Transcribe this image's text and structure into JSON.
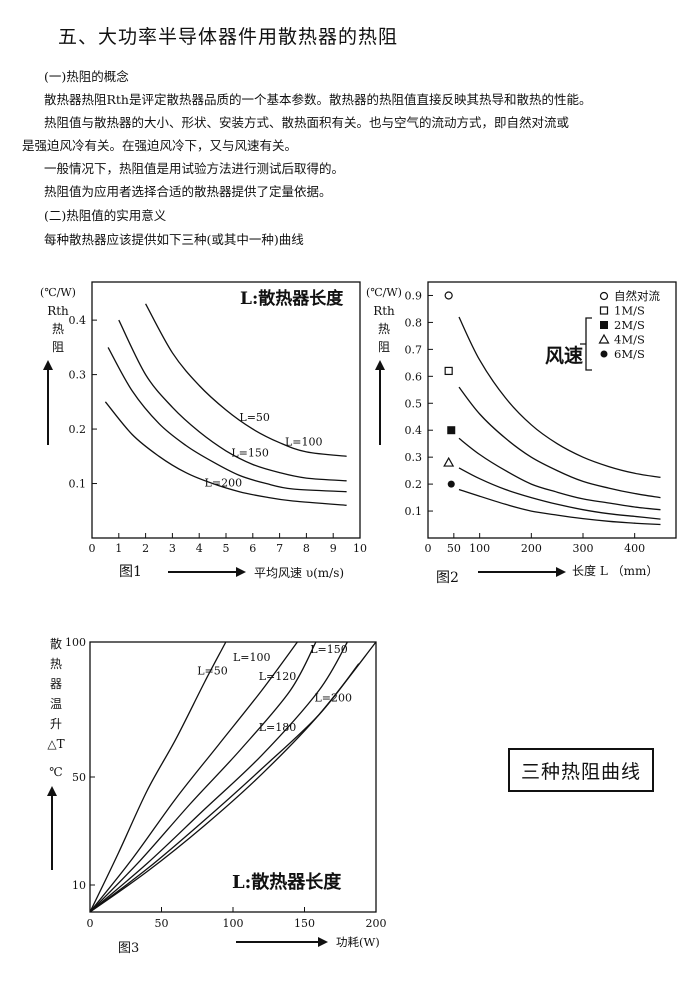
{
  "doc": {
    "title": "五、大功率半导体器件用散热器的热阻",
    "section1": "(一)热阻的概念",
    "p1": "散热器热阻Rth是评定散热器品质的一个基本参数。散热器的热阻值直接反映其热导和散热的性能。",
    "p2a": "热阻值与散热器的大小、形状、安装方式、散热面积有关。也与空气的流动方式，即自然对流或",
    "p2b": "是强迫风冷有关。在强迫风冷下，又与风速有关。",
    "p3": "一般情况下，热阻值是用试验方法进行测试后取得的。",
    "p4": "热阻值为应用者选择合适的散热器提供了定量依据。",
    "section2": "(二)热阻值的实用意义",
    "p5": "每种散热器应该提供如下三种(或其中一种)曲线",
    "box_label": "三种热阻曲线"
  },
  "chart_data": [
    {
      "type": "line",
      "caption": "图1",
      "banner": "L:散热器长度",
      "xlabel": "平均风速 υ(m/s)",
      "ylabel_unit": "(℃/W)",
      "ylabel": [
        "Rth",
        "热",
        "阻"
      ],
      "xlim": [
        0,
        10
      ],
      "ylim": [
        0,
        0.47
      ],
      "xticks": [
        0,
        1,
        2,
        3,
        4,
        5,
        6,
        7,
        8,
        9,
        10
      ],
      "yticks": [
        0.1,
        0.2,
        0.3,
        0.4
      ],
      "series": [
        {
          "name": "L=50",
          "label_at": [
            5.5,
            0.215
          ],
          "x": [
            2.0,
            3,
            4,
            5,
            6,
            7,
            8,
            9.5
          ],
          "y": [
            0.43,
            0.34,
            0.28,
            0.235,
            0.2,
            0.175,
            0.158,
            0.15
          ]
        },
        {
          "name": "L=100",
          "label_at": [
            7.2,
            0.17
          ],
          "x": [
            1.0,
            2,
            3,
            4,
            5,
            6,
            7,
            8,
            9.5
          ],
          "y": [
            0.4,
            0.3,
            0.24,
            0.195,
            0.16,
            0.135,
            0.12,
            0.11,
            0.105
          ]
        },
        {
          "name": "L=150",
          "label_at": [
            5.2,
            0.15
          ],
          "x": [
            0.6,
            1.5,
            2.5,
            3.5,
            4.5,
            5.5,
            6.5,
            7.5,
            9.5
          ],
          "y": [
            0.35,
            0.27,
            0.21,
            0.17,
            0.14,
            0.115,
            0.1,
            0.09,
            0.085
          ]
        },
        {
          "name": "L=200",
          "label_at": [
            4.2,
            0.095
          ],
          "x": [
            0.5,
            1.5,
            2.5,
            3.5,
            4.5,
            5.5,
            6.5,
            7.5,
            9.5
          ],
          "y": [
            0.25,
            0.19,
            0.15,
            0.12,
            0.1,
            0.085,
            0.075,
            0.068,
            0.06
          ]
        }
      ]
    },
    {
      "type": "line",
      "caption": "图2",
      "banner": "风速",
      "xlabel": "长度 L （mm）",
      "ylabel_unit": "(℃/W)",
      "ylabel": [
        "Rth",
        "热",
        "阻"
      ],
      "xlim": [
        0,
        480
      ],
      "ylim": [
        0,
        0.95
      ],
      "xticks": [
        0,
        50,
        100,
        200,
        300,
        400
      ],
      "yticks": [
        0.1,
        0.2,
        0.3,
        0.4,
        0.5,
        0.6,
        0.7,
        0.8,
        0.9
      ],
      "legend": [
        "自然对流",
        "1M/S",
        "2M/S",
        "4M/S",
        "6M/S"
      ],
      "series": [
        {
          "name": "自然对流",
          "marker": "circle-open",
          "x": [
            40,
            60,
            100,
            150,
            200,
            250,
            300,
            350,
            400,
            450
          ],
          "y": [
            0.9,
            0.82,
            0.66,
            0.52,
            0.42,
            0.35,
            0.3,
            0.265,
            0.24,
            0.225
          ]
        },
        {
          "name": "1M/S",
          "marker": "square-open",
          "x": [
            40,
            60,
            100,
            150,
            200,
            250,
            300,
            350,
            400,
            450
          ],
          "y": [
            0.62,
            0.56,
            0.46,
            0.37,
            0.3,
            0.25,
            0.21,
            0.185,
            0.165,
            0.15
          ]
        },
        {
          "name": "2M/S",
          "marker": "square-filled",
          "x": [
            45,
            60,
            100,
            150,
            200,
            250,
            300,
            350,
            400,
            450
          ],
          "y": [
            0.4,
            0.37,
            0.31,
            0.25,
            0.2,
            0.17,
            0.145,
            0.13,
            0.115,
            0.105
          ]
        },
        {
          "name": "4M/S",
          "marker": "triangle-open",
          "x": [
            40,
            60,
            100,
            150,
            200,
            250,
            300,
            350,
            400,
            450
          ],
          "y": [
            0.28,
            0.26,
            0.22,
            0.18,
            0.15,
            0.125,
            0.105,
            0.09,
            0.08,
            0.07
          ]
        },
        {
          "name": "6M/S",
          "marker": "circle-filled",
          "x": [
            45,
            60,
            100,
            150,
            200,
            250,
            300,
            350,
            400,
            450
          ],
          "y": [
            0.2,
            0.18,
            0.155,
            0.125,
            0.1,
            0.085,
            0.072,
            0.062,
            0.055,
            0.05
          ]
        }
      ]
    },
    {
      "type": "line",
      "caption": "图3",
      "banner": "L:散热器长度",
      "xlabel": "功耗(W)",
      "ylabel": [
        "散",
        "热",
        "器",
        "温",
        "升",
        "△T",
        "℃"
      ],
      "xlim": [
        0,
        200
      ],
      "ylim": [
        0,
        100
      ],
      "xticks": [
        0,
        50,
        100,
        150,
        200
      ],
      "yticks": [
        10,
        50,
        100
      ],
      "series": [
        {
          "name": "L=50",
          "label_at": [
            75,
            88
          ],
          "x": [
            0,
            20,
            40,
            60,
            80,
            95
          ],
          "y": [
            0,
            22,
            45,
            64,
            85,
            100
          ]
        },
        {
          "name": "L=100",
          "label_at": [
            100,
            93
          ],
          "x": [
            0,
            30,
            60,
            90,
            120,
            145
          ],
          "y": [
            0,
            20,
            42,
            62,
            82,
            100
          ]
        },
        {
          "name": "L=120",
          "label_at": [
            118,
            86
          ],
          "x": [
            0,
            35,
            70,
            105,
            140,
            158
          ],
          "y": [
            0,
            19,
            40,
            60,
            82,
            100
          ]
        },
        {
          "name": "L=150",
          "label_at": [
            154,
            96
          ],
          "x": [
            0,
            40,
            80,
            120,
            160,
            180
          ],
          "y": [
            0,
            18,
            38,
            58,
            82,
            100
          ]
        },
        {
          "name": "L=180",
          "label_at": [
            118,
            67
          ],
          "x": [
            0,
            40,
            80,
            120,
            160,
            188
          ],
          "y": [
            0,
            16,
            34,
            53,
            73,
            92
          ]
        },
        {
          "name": "L=200",
          "label_at": [
            157,
            78
          ],
          "x": [
            0,
            40,
            80,
            120,
            160,
            200
          ],
          "y": [
            0,
            15,
            32,
            51,
            73,
            100
          ]
        }
      ]
    }
  ]
}
